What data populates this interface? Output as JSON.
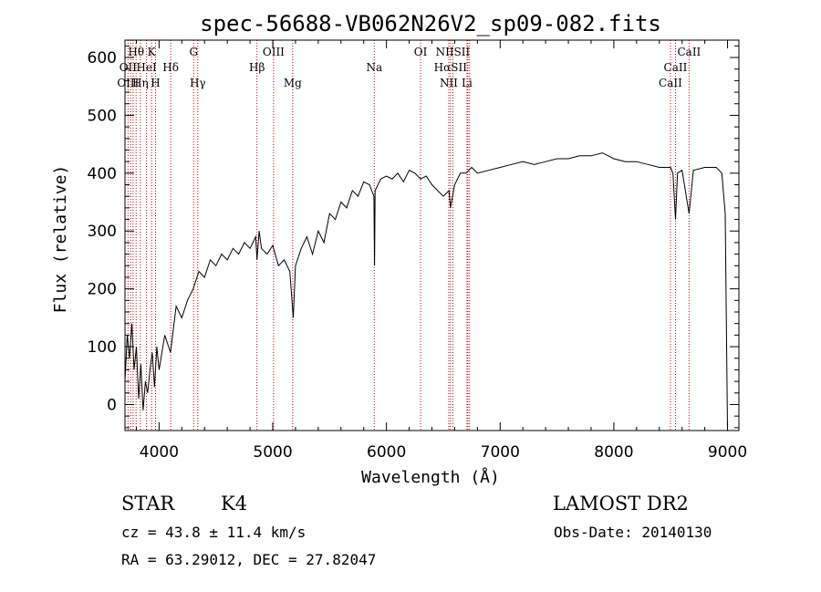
{
  "chart_data": {
    "type": "line",
    "title": "spec-56688-VB062N26V2_sp09-082.fits",
    "xlabel": "Wavelength (Å)",
    "ylabel": "Flux (relative)",
    "xlim": [
      3700,
      9100
    ],
    "ylim": [
      -45,
      630
    ],
    "x_ticks": [
      4000,
      5000,
      6000,
      7000,
      8000,
      9000
    ],
    "y_ticks": [
      0,
      100,
      200,
      300,
      400,
      500,
      600
    ],
    "line_color": "#000000",
    "marker_color": "#cc0000",
    "series": [
      {
        "x": [
          3700,
          3720,
          3740,
          3760,
          3780,
          3800,
          3820,
          3840,
          3860,
          3880,
          3900,
          3920,
          3940,
          3960,
          3980,
          4000,
          4050,
          4100,
          4150,
          4200,
          4250,
          4300,
          4350,
          4400,
          4450,
          4500,
          4550,
          4600,
          4650,
          4700,
          4750,
          4800,
          4850,
          4861,
          4880,
          4900,
          4950,
          5000,
          5050,
          5100,
          5150,
          5180,
          5200,
          5250,
          5300,
          5350,
          5400,
          5450,
          5500,
          5550,
          5600,
          5650,
          5700,
          5750,
          5800,
          5850,
          5890,
          5895,
          5900,
          5950,
          6000,
          6050,
          6100,
          6150,
          6200,
          6250,
          6300,
          6350,
          6400,
          6450,
          6500,
          6550,
          6563,
          6600,
          6650,
          6700,
          6750,
          6800,
          6900,
          7000,
          7100,
          7200,
          7300,
          7400,
          7500,
          7600,
          7700,
          7800,
          7900,
          8000,
          8100,
          8200,
          8300,
          8400,
          8498,
          8520,
          8542,
          8560,
          8600,
          8662,
          8700,
          8800,
          8900,
          8950,
          8980,
          9000
        ],
        "y": [
          40,
          120,
          80,
          140,
          60,
          100,
          10,
          70,
          -10,
          40,
          20,
          60,
          90,
          30,
          100,
          60,
          120,
          90,
          170,
          150,
          180,
          200,
          230,
          220,
          250,
          240,
          260,
          250,
          270,
          260,
          280,
          270,
          290,
          250,
          300,
          270,
          260,
          275,
          240,
          250,
          230,
          150,
          240,
          270,
          290,
          260,
          300,
          280,
          330,
          320,
          350,
          340,
          370,
          360,
          385,
          380,
          360,
          240,
          370,
          390,
          395,
          390,
          400,
          385,
          405,
          400,
          390,
          395,
          380,
          370,
          360,
          370,
          340,
          380,
          400,
          400,
          410,
          400,
          405,
          410,
          415,
          420,
          415,
          420,
          425,
          425,
          430,
          430,
          435,
          425,
          420,
          420,
          415,
          410,
          410,
          400,
          320,
          400,
          405,
          330,
          405,
          410,
          410,
          400,
          330,
          -50
        ]
      }
    ],
    "spectral_lines": [
      {
        "label": "Hθ",
        "x": 3798,
        "row": 1
      },
      {
        "label": "K",
        "x": 3934,
        "row": 1
      },
      {
        "label": "G",
        "x": 4304,
        "row": 1
      },
      {
        "label": "OIII",
        "x": 5007,
        "row": 1
      },
      {
        "label": "OI",
        "x": 6300,
        "row": 1
      },
      {
        "label": "NIISII",
        "x": 6584,
        "row": 1
      },
      {
        "label": "CaII",
        "x": 8662,
        "row": 1
      },
      {
        "label": "OII",
        "x": 3727,
        "row": 2
      },
      {
        "label": "HeI",
        "x": 3889,
        "row": 2
      },
      {
        "label": "Hδ",
        "x": 4102,
        "row": 2
      },
      {
        "label": "Hβ",
        "x": 4861,
        "row": 2
      },
      {
        "label": "Na",
        "x": 5893,
        "row": 2
      },
      {
        "label": "HαSII",
        "x": 6563,
        "row": 2
      },
      {
        "label": "CaII",
        "x": 8542,
        "row": 2
      },
      {
        "label": "OIII",
        "x": 3727,
        "row": 3
      },
      {
        "label": "Hη",
        "x": 3835,
        "row": 3
      },
      {
        "label": "H",
        "x": 3969,
        "row": 3
      },
      {
        "label": "Hγ",
        "x": 4340,
        "row": 3
      },
      {
        "label": "Mg",
        "x": 5175,
        "row": 3
      },
      {
        "label": "NII",
        "x": 6548,
        "row": 3
      },
      {
        "label": "Li",
        "x": 6708,
        "row": 3
      },
      {
        "label": "CaII",
        "x": 8498,
        "row": 3
      }
    ],
    "extra_marker_lines": [
      3750,
      3771,
      3889,
      6716,
      6731
    ]
  },
  "info": {
    "object_class": "STAR",
    "subclass": "K4",
    "survey": "LAMOST DR2",
    "cz": "cz = 43.8 ± 11.4 km/s",
    "obs_date": "Obs-Date: 20140130",
    "coords": "RA =  63.29012, DEC =  27.82047"
  }
}
